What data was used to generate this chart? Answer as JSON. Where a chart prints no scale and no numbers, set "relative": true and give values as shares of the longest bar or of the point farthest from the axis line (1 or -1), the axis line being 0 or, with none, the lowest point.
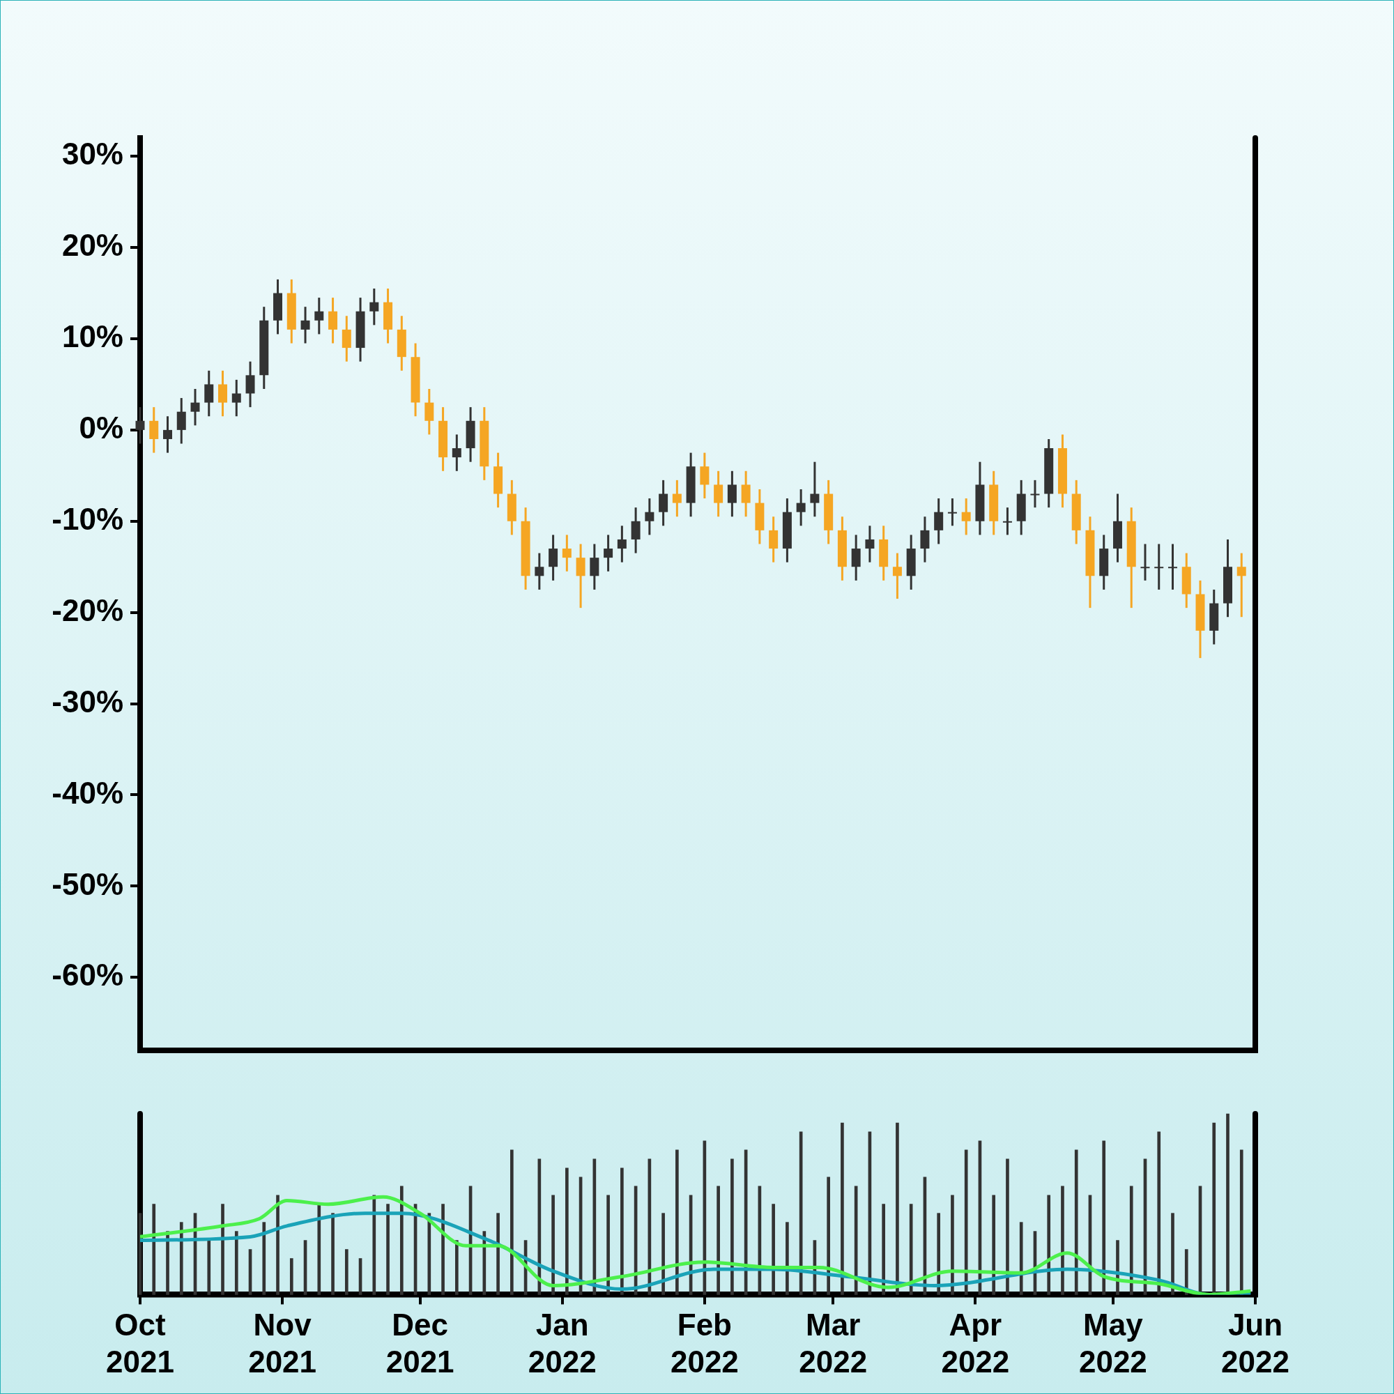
{
  "chart_data": [
    {
      "type": "candlestick",
      "tick_labels": "y",
      "xlim": [
        "2021-10",
        "2022-06"
      ],
      "ylim": [
        -68,
        32
      ],
      "yticks": [
        {
          "value": 30,
          "label": "30%"
        },
        {
          "value": 20,
          "label": "20%"
        },
        {
          "value": 10,
          "label": "10%"
        },
        {
          "value": 0,
          "label": "0%"
        },
        {
          "value": -10,
          "label": "-10%"
        },
        {
          "value": -20,
          "label": "-20%"
        },
        {
          "value": -30,
          "label": "-30%"
        },
        {
          "value": -40,
          "label": "-40%"
        },
        {
          "value": -50,
          "label": "-50%"
        },
        {
          "value": -60,
          "label": "-60%"
        }
      ],
      "x": [
        "2021-10-01",
        "2021-10-04",
        "2021-10-07",
        "2021-10-10",
        "2021-10-13",
        "2021-10-16",
        "2021-10-19",
        "2021-10-22",
        "2021-10-25",
        "2021-10-28",
        "2021-10-31",
        "2021-11-03",
        "2021-11-06",
        "2021-11-09",
        "2021-11-12",
        "2021-11-15",
        "2021-11-18",
        "2021-11-21",
        "2021-11-24",
        "2021-11-27",
        "2021-11-30",
        "2021-12-03",
        "2021-12-06",
        "2021-12-09",
        "2021-12-12",
        "2021-12-15",
        "2021-12-18",
        "2021-12-21",
        "2021-12-24",
        "2021-12-27",
        "2021-12-30",
        "2022-01-02",
        "2022-01-05",
        "2022-01-08",
        "2022-01-11",
        "2022-01-14",
        "2022-01-17",
        "2022-01-20",
        "2022-01-23",
        "2022-01-26",
        "2022-01-29",
        "2022-02-01",
        "2022-02-04",
        "2022-02-07",
        "2022-02-10",
        "2022-02-13",
        "2022-02-16",
        "2022-02-19",
        "2022-02-22",
        "2022-02-25",
        "2022-02-28",
        "2022-03-03",
        "2022-03-06",
        "2022-03-09",
        "2022-03-12",
        "2022-03-15",
        "2022-03-18",
        "2022-03-21",
        "2022-03-24",
        "2022-03-27",
        "2022-03-30",
        "2022-04-02",
        "2022-04-05",
        "2022-04-08",
        "2022-04-11",
        "2022-04-14",
        "2022-04-17",
        "2022-04-20",
        "2022-04-23",
        "2022-04-26",
        "2022-04-29",
        "2022-05-02",
        "2022-05-05",
        "2022-05-08",
        "2022-05-11",
        "2022-05-14",
        "2022-05-17",
        "2022-05-20",
        "2022-05-23",
        "2022-05-26",
        "2022-05-29"
      ],
      "ohlc": [
        [
          0,
          2.5,
          -1.5,
          1
        ],
        [
          1,
          2.5,
          -2.5,
          -1
        ],
        [
          -1,
          1.5,
          -2.5,
          0
        ],
        [
          0,
          3.5,
          -1.5,
          2
        ],
        [
          2,
          4.5,
          0.5,
          3
        ],
        [
          3,
          6.5,
          1.5,
          5
        ],
        [
          5,
          6.5,
          1.5,
          3
        ],
        [
          3,
          5.5,
          1.5,
          4
        ],
        [
          4,
          7.5,
          2.5,
          6
        ],
        [
          6,
          13.5,
          4.5,
          12
        ],
        [
          12,
          16.5,
          10.5,
          15
        ],
        [
          15,
          16.5,
          9.5,
          11
        ],
        [
          11,
          13.5,
          9.5,
          12
        ],
        [
          12,
          14.5,
          10.5,
          13
        ],
        [
          13,
          14.5,
          9.5,
          11
        ],
        [
          11,
          12.5,
          7.5,
          9
        ],
        [
          9,
          14.5,
          7.5,
          13
        ],
        [
          13,
          15.5,
          11.5,
          14
        ],
        [
          14,
          15.5,
          9.5,
          11
        ],
        [
          11,
          12.5,
          6.5,
          8
        ],
        [
          8,
          9.5,
          1.5,
          3
        ],
        [
          3,
          4.5,
          -0.5,
          1
        ],
        [
          1,
          2.5,
          -4.5,
          -3
        ],
        [
          -3,
          -0.5,
          -4.5,
          -2
        ],
        [
          -2,
          2.5,
          -3.5,
          1
        ],
        [
          1,
          2.5,
          -5.5,
          -4
        ],
        [
          -4,
          -2.5,
          -8.5,
          -7
        ],
        [
          -7,
          -5.5,
          -11.5,
          -10
        ],
        [
          -10,
          -8.5,
          -17.5,
          -16
        ],
        [
          -16,
          -13.5,
          -17.5,
          -15
        ],
        [
          -15,
          -11.5,
          -16.5,
          -13
        ],
        [
          -13,
          -11.5,
          -15.5,
          -14
        ],
        [
          -14,
          -12.5,
          -19.5,
          -16
        ],
        [
          -16,
          -12.5,
          -17.5,
          -14
        ],
        [
          -14,
          -11.5,
          -15.5,
          -13
        ],
        [
          -13,
          -10.5,
          -14.5,
          -12
        ],
        [
          -12,
          -8.5,
          -13.5,
          -10
        ],
        [
          -10,
          -7.5,
          -11.5,
          -9
        ],
        [
          -9,
          -5.5,
          -10.5,
          -7
        ],
        [
          -7,
          -5.5,
          -9.5,
          -8
        ],
        [
          -8,
          -2.5,
          -9.5,
          -4
        ],
        [
          -4,
          -2.5,
          -7.5,
          -6
        ],
        [
          -6,
          -4.5,
          -9.5,
          -8
        ],
        [
          -8,
          -4.5,
          -9.5,
          -6
        ],
        [
          -6,
          -4.5,
          -9.5,
          -8
        ],
        [
          -8,
          -6.5,
          -12.5,
          -11
        ],
        [
          -11,
          -9.5,
          -14.5,
          -13
        ],
        [
          -13,
          -7.5,
          -14.5,
          -9
        ],
        [
          -9,
          -6.5,
          -10.5,
          -8
        ],
        [
          -8,
          -3.5,
          -9.5,
          -7
        ],
        [
          -7,
          -5.5,
          -12.5,
          -11
        ],
        [
          -11,
          -9.5,
          -16.5,
          -15
        ],
        [
          -15,
          -11.5,
          -16.5,
          -13
        ],
        [
          -13,
          -10.5,
          -14.5,
          -12
        ],
        [
          -12,
          -10.5,
          -16.5,
          -15
        ],
        [
          -15,
          -13.5,
          -18.5,
          -16
        ],
        [
          -16,
          -11.5,
          -17.5,
          -13
        ],
        [
          -13,
          -9.5,
          -14.5,
          -11
        ],
        [
          -11,
          -7.5,
          -12.5,
          -9
        ],
        [
          -9,
          -7.5,
          -10.5,
          -9
        ],
        [
          -9,
          -7.5,
          -11.5,
          -10
        ],
        [
          -10,
          -3.5,
          -11.5,
          -6
        ],
        [
          -6,
          -4.5,
          -11.5,
          -10
        ],
        [
          -10,
          -8.5,
          -11.5,
          -10
        ],
        [
          -10,
          -5.5,
          -11.5,
          -7
        ],
        [
          -7,
          -5.5,
          -8.5,
          -7
        ],
        [
          -7,
          -1,
          -8.5,
          -2
        ],
        [
          -2,
          -0.5,
          -8.5,
          -7
        ],
        [
          -7,
          -5.5,
          -12.5,
          -11
        ],
        [
          -11,
          -9.5,
          -19.5,
          -16
        ],
        [
          -16,
          -11.5,
          -17.5,
          -13
        ],
        [
          -13,
          -7,
          -14.5,
          -10
        ],
        [
          -10,
          -8.5,
          -19.5,
          -15
        ],
        [
          -15,
          -12.5,
          -16.5,
          -15
        ],
        [
          -15,
          -12.5,
          -17.5,
          -15
        ],
        [
          -15,
          -12.5,
          -17.5,
          -15
        ],
        [
          -15,
          -13.5,
          -19.5,
          -18
        ],
        [
          -18,
          -16.5,
          -25,
          -22
        ],
        [
          -22,
          -17.5,
          -23.5,
          -19
        ],
        [
          -19,
          -12,
          -20.5,
          -15
        ],
        [
          -15,
          -13.5,
          -20.5,
          -16
        ]
      ],
      "colors": [
        "#333333",
        "#f5a623",
        "#333333",
        "#333333",
        "#333333",
        "#333333",
        "#f5a623",
        "#333333",
        "#333333",
        "#333333",
        "#333333",
        "#f5a623",
        "#333333",
        "#333333",
        "#f5a623",
        "#f5a623",
        "#333333",
        "#333333",
        "#f5a623",
        "#f5a623",
        "#f5a623",
        "#f5a623",
        "#f5a623",
        "#333333",
        "#333333",
        "#f5a623",
        "#f5a623",
        "#f5a623",
        "#f5a623",
        "#333333",
        "#333333",
        "#f5a623",
        "#f5a623",
        "#333333",
        "#333333",
        "#333333",
        "#333333",
        "#333333",
        "#333333",
        "#f5a623",
        "#333333",
        "#f5a623",
        "#f5a623",
        "#333333",
        "#f5a623",
        "#f5a623",
        "#f5a623",
        "#333333",
        "#333333",
        "#333333",
        "#f5a623",
        "#f5a623",
        "#333333",
        "#333333",
        "#f5a623",
        "#f5a623",
        "#333333",
        "#333333",
        "#333333",
        "#333333",
        "#f5a623",
        "#333333",
        "#f5a623",
        "#333333",
        "#333333",
        "#333333",
        "#333333",
        "#f5a623",
        "#f5a623",
        "#f5a623",
        "#333333",
        "#333333",
        "#f5a623",
        "#333333",
        "#333333",
        "#333333",
        "#f5a623",
        "#f5a623",
        "#333333",
        "#333333",
        "#f5a623"
      ]
    },
    {
      "type": "bar",
      "relative": true,
      "tick_labels": "x",
      "xlim": [
        "2021-10",
        "2022-06"
      ],
      "xticks": [
        {
          "value": "2021-10",
          "label": "Oct\n2021"
        },
        {
          "value": "2021-11",
          "label": "Nov\n2021"
        },
        {
          "value": "2021-12",
          "label": "Dec\n2021"
        },
        {
          "value": "2022-01",
          "label": "Jan\n2022"
        },
        {
          "value": "2022-02",
          "label": "Feb\n2022"
        },
        {
          "value": "2022-03",
          "label": "Mar\n2022"
        },
        {
          "value": "2022-04",
          "label": "Apr\n2022"
        },
        {
          "value": "2022-05",
          "label": "May\n2022"
        },
        {
          "value": "2022-06",
          "label": "Jun\n2022"
        }
      ],
      "x": [
        "2021-10-01",
        "2021-10-04",
        "2021-10-07",
        "2021-10-10",
        "2021-10-13",
        "2021-10-16",
        "2021-10-19",
        "2021-10-22",
        "2021-10-25",
        "2021-10-28",
        "2021-10-31",
        "2021-11-03",
        "2021-11-06",
        "2021-11-09",
        "2021-11-12",
        "2021-11-15",
        "2021-11-18",
        "2021-11-21",
        "2021-11-24",
        "2021-11-27",
        "2021-11-30",
        "2021-12-03",
        "2021-12-06",
        "2021-12-09",
        "2021-12-12",
        "2021-12-15",
        "2021-12-18",
        "2021-12-21",
        "2021-12-24",
        "2021-12-27",
        "2021-12-30",
        "2022-01-02",
        "2022-01-05",
        "2022-01-08",
        "2022-01-11",
        "2022-01-14",
        "2022-01-17",
        "2022-01-20",
        "2022-01-23",
        "2022-01-26",
        "2022-01-29",
        "2022-02-01",
        "2022-02-04",
        "2022-02-07",
        "2022-02-10",
        "2022-02-13",
        "2022-02-16",
        "2022-02-19",
        "2022-02-22",
        "2022-02-25",
        "2022-02-28",
        "2022-03-03",
        "2022-03-06",
        "2022-03-09",
        "2022-03-12",
        "2022-03-15",
        "2022-03-18",
        "2022-03-21",
        "2022-03-24",
        "2022-03-27",
        "2022-03-30",
        "2022-04-02",
        "2022-04-05",
        "2022-04-08",
        "2022-04-11",
        "2022-04-14",
        "2022-04-17",
        "2022-04-20",
        "2022-04-23",
        "2022-04-26",
        "2022-04-29",
        "2022-05-02",
        "2022-05-05",
        "2022-05-08",
        "2022-05-11",
        "2022-05-14",
        "2022-05-17",
        "2022-05-20",
        "2022-05-23",
        "2022-05-26",
        "2022-05-29"
      ],
      "series": [
        {
          "color": "#333333",
          "values": [
            0.45,
            0.5,
            0.35,
            0.4,
            0.45,
            0.3,
            0.5,
            0.35,
            0.25,
            0.4,
            0.55,
            0.2,
            0.3,
            0.5,
            0.45,
            0.25,
            0.2,
            0.55,
            0.5,
            0.6,
            0.5,
            0.45,
            0.5,
            0.3,
            0.6,
            0.35,
            0.45,
            0.8,
            0.3,
            0.75,
            0.55,
            0.7,
            0.65,
            0.75,
            0.55,
            0.7,
            0.6,
            0.75,
            0.45,
            0.8,
            0.55,
            0.85,
            0.6,
            0.75,
            0.8,
            0.6,
            0.5,
            0.4,
            0.9,
            0.3,
            0.65,
            0.95,
            0.6,
            0.9,
            0.5,
            0.95,
            0.5,
            0.65,
            0.45,
            0.55,
            0.8,
            0.85,
            0.55,
            0.75,
            0.4,
            0.35,
            0.55,
            0.6,
            0.8,
            0.55,
            0.85,
            0.3,
            0.6,
            0.75,
            0.9,
            0.45,
            0.25,
            0.6,
            0.95,
            1.0,
            0.8
          ]
        },
        {
          "type": "line",
          "color": "#4cf04c",
          "x": [
            "2021-10-01",
            "2021-10-19",
            "2021-10-27",
            "2021-11-02",
            "2021-11-11",
            "2021-11-23",
            "2021-12-01",
            "2021-12-11",
            "2021-12-18",
            "2021-12-30",
            "2022-01-14",
            "2022-02-01",
            "2022-02-16",
            "2022-02-26",
            "2022-03-13",
            "2022-03-27",
            "2022-04-11",
            "2022-04-21",
            "2022-04-29",
            "2022-05-11",
            "2022-05-22",
            "2022-05-31"
          ],
          "values": [
            0.32,
            0.38,
            0.42,
            0.52,
            0.5,
            0.54,
            0.45,
            0.27,
            0.27,
            0.05,
            0.1,
            0.18,
            0.15,
            0.15,
            0.04,
            0.13,
            0.12,
            0.23,
            0.1,
            0.06,
            0.0,
            0.02
          ]
        },
        {
          "type": "line",
          "color": "#1aa3b8",
          "x": [
            "2021-10-01",
            "2021-10-25",
            "2021-11-02",
            "2021-11-19",
            "2021-11-27",
            "2021-12-16",
            "2021-12-30",
            "2022-01-14",
            "2022-02-03",
            "2022-02-16",
            "2022-03-04",
            "2022-03-23",
            "2022-04-21",
            "2022-05-11",
            "2022-05-22",
            "2022-05-31"
          ],
          "values": [
            0.3,
            0.32,
            0.38,
            0.45,
            0.45,
            0.3,
            0.13,
            0.03,
            0.14,
            0.14,
            0.1,
            0.05,
            0.14,
            0.08,
            0.0,
            0.0
          ]
        }
      ]
    }
  ]
}
